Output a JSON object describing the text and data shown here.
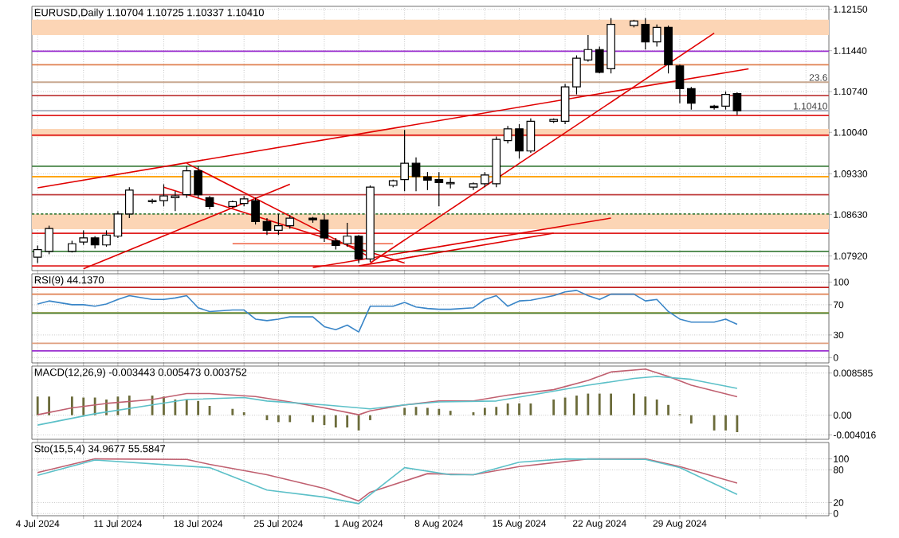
{
  "chart_data": [
    {
      "type": "candlestick",
      "title": "EURUSD,Daily 1.10704 1.10725 1.10337 1.10410",
      "color": "#000000",
      "grid": true,
      "tick_labels": "y",
      "x": [
        "2024-07-04",
        "2024-07-05",
        "2024-07-07",
        "2024-07-08",
        "2024-07-09",
        "2024-07-10",
        "2024-07-11",
        "2024-07-12",
        "2024-07-14",
        "2024-07-15",
        "2024-07-16",
        "2024-07-17",
        "2024-07-18",
        "2024-07-19",
        "2024-07-21",
        "2024-07-22",
        "2024-07-23",
        "2024-07-24",
        "2024-07-25",
        "2024-07-26",
        "2024-07-28",
        "2024-07-29",
        "2024-07-30",
        "2024-07-31",
        "2024-08-01",
        "2024-08-02",
        "2024-08-04",
        "2024-08-05",
        "2024-08-06",
        "2024-08-07",
        "2024-08-08",
        "2024-08-09",
        "2024-08-11",
        "2024-08-12",
        "2024-08-13",
        "2024-08-14",
        "2024-08-15",
        "2024-08-16",
        "2024-08-18",
        "2024-08-19",
        "2024-08-20",
        "2024-08-21",
        "2024-08-22",
        "2024-08-23",
        "2024-08-25",
        "2024-08-26",
        "2024-08-27",
        "2024-08-28",
        "2024-08-29",
        "2024-08-30",
        "2024-09-01",
        "2024-09-02",
        "2024-09-03"
      ],
      "ohlc": [
        [
          1.079,
          1.081,
          1.078,
          1.0803
        ],
        [
          1.08,
          1.0844,
          1.0795,
          1.0839
        ],
        [
          1.08,
          1.0818,
          1.0798,
          1.0813
        ],
        [
          1.0816,
          1.0836,
          1.0811,
          1.0823
        ],
        [
          1.0823,
          1.0826,
          1.0805,
          1.0811
        ],
        [
          1.0811,
          1.0836,
          1.0808,
          1.0828
        ],
        [
          1.0826,
          1.0869,
          1.0823,
          1.0864
        ],
        [
          1.0864,
          1.091,
          1.0857,
          1.0905
        ],
        [
          1.0885,
          1.089,
          1.0882,
          1.0887
        ],
        [
          1.0887,
          1.0915,
          1.0877,
          1.0895
        ],
        [
          1.0892,
          1.0903,
          1.0869,
          1.0895
        ],
        [
          1.0897,
          1.0946,
          1.0892,
          1.0938
        ],
        [
          1.0938,
          1.0946,
          1.0892,
          1.0897
        ],
        [
          1.0892,
          1.0895,
          1.0872,
          1.0877
        ],
        [
          1.0877,
          1.0887,
          1.0875,
          1.0885
        ],
        [
          1.0882,
          1.0895,
          1.0877,
          1.089
        ],
        [
          1.0887,
          1.0892,
          1.0846,
          1.0851
        ],
        [
          1.0851,
          1.0857,
          1.0828,
          1.0836
        ],
        [
          1.0836,
          1.0864,
          1.0828,
          1.0844
        ],
        [
          1.0844,
          1.0862,
          1.0839,
          1.0857
        ],
        [
          1.0857,
          1.0859,
          1.0849,
          1.0854
        ],
        [
          1.0854,
          1.0864,
          1.0816,
          1.0823
        ],
        [
          1.0818,
          1.0823,
          1.0803,
          1.081
        ],
        [
          1.0813,
          1.0849,
          1.0808,
          1.0826
        ],
        [
          1.0826,
          1.0828,
          1.078,
          1.0787
        ],
        [
          1.0787,
          1.0913,
          1.0782,
          1.091
        ],
        [
          1.0913,
          1.0923,
          1.091,
          1.0921
        ],
        [
          1.0923,
          1.1008,
          1.0903,
          1.0951
        ],
        [
          1.0951,
          1.0961,
          1.0903,
          1.0928
        ],
        [
          1.0928,
          1.0936,
          1.0905,
          1.0922
        ],
        [
          1.0923,
          1.0936,
          1.0877,
          1.0918
        ],
        [
          1.0916,
          1.0926,
          1.0908,
          1.0918
        ],
        [
          1.091,
          1.0918,
          1.0905,
          1.0916
        ],
        [
          1.0916,
          1.0936,
          1.091,
          1.0931
        ],
        [
          1.0916,
          1.0997,
          1.091,
          1.0992
        ],
        [
          1.099,
          1.1015,
          1.0985,
          1.101
        ],
        [
          1.101,
          1.1018,
          1.0959,
          1.0972
        ],
        [
          1.0972,
          1.1028,
          1.0969,
          1.1023
        ],
        [
          1.1023,
          1.1028,
          1.102,
          1.1026
        ],
        [
          1.1023,
          1.1087,
          1.1018,
          1.1082
        ],
        [
          1.1082,
          1.1136,
          1.1069,
          1.1131
        ],
        [
          1.1128,
          1.1171,
          1.1125,
          1.1146
        ],
        [
          1.1146,
          1.1151,
          1.1105,
          1.1107
        ],
        [
          1.1113,
          1.12,
          1.1105,
          1.1189
        ],
        [
          1.1187,
          1.1197,
          1.1184,
          1.1195
        ],
        [
          1.1189,
          1.12,
          1.1146,
          1.1159
        ],
        [
          1.1159,
          1.1189,
          1.1151,
          1.1184
        ],
        [
          1.1184,
          1.1187,
          1.1105,
          1.112
        ],
        [
          1.1118,
          1.112,
          1.1054,
          1.1079
        ],
        [
          1.1079,
          1.1082,
          1.1043,
          1.1054
        ],
        [
          1.1049,
          1.1051,
          1.1043,
          1.1046
        ],
        [
          1.1049,
          1.1074,
          1.1043,
          1.1069
        ],
        [
          1.10704,
          1.10725,
          1.10337,
          1.1041
        ]
      ],
      "series": [
        {
          "type": "line",
          "color": "#e00000",
          "x": [
            "2024-07-04",
            "2024-09-04"
          ],
          "values": [
            1.0909,
            1.1113
          ]
        },
        {
          "type": "line",
          "color": "#e00000",
          "x": [
            "2024-08-02",
            "2024-09-01"
          ],
          "values": [
            1.078,
            1.1174
          ]
        },
        {
          "type": "line",
          "color": "#e00000",
          "x": [
            "2024-07-15",
            "2024-08-05"
          ],
          "values": [
            1.091,
            1.078
          ]
        },
        {
          "type": "line",
          "color": "#e00000",
          "x": [
            "2024-07-17",
            "2024-08-02"
          ],
          "values": [
            1.0951,
            1.079
          ]
        },
        {
          "type": "line",
          "color": "#e00000",
          "x": [
            "2024-07-08",
            "2024-07-26"
          ],
          "values": [
            1.077,
            1.0915
          ]
        },
        {
          "type": "line",
          "color": "#e00000",
          "x": [
            "2024-07-28",
            "2024-08-23"
          ],
          "values": [
            1.0772,
            1.0857
          ]
        },
        {
          "type": "line",
          "color": "#e00000",
          "x": [
            "2024-08-01",
            "2024-08-18"
          ],
          "values": [
            1.0775,
            1.0831
          ]
        },
        {
          "type": "line",
          "color": "#f06040",
          "x": [
            "2024-07-21",
            "2024-08-04"
          ],
          "values": [
            1.0813,
            1.0813
          ]
        }
      ],
      "ref_lines": [
        {
          "axis": "y",
          "value": 1.1143,
          "color": "#9b30d0"
        },
        {
          "axis": "y",
          "value": 1.112,
          "color": "#e08050"
        },
        {
          "axis": "y",
          "value": 1.109,
          "color": "#c8a890"
        },
        {
          "axis": "y",
          "value": 1.1067,
          "color": "#c04040"
        },
        {
          "axis": "y",
          "value": 1.1041,
          "label": "1.10410",
          "color": "#a0a8b8"
        },
        {
          "axis": "y",
          "value": 1.1033,
          "color": "#e02020"
        },
        {
          "axis": "y",
          "value": 1.0999,
          "color": "#e02020"
        },
        {
          "axis": "y",
          "value": 1.0946,
          "color": "#408040"
        },
        {
          "axis": "y",
          "value": 1.0928,
          "color": "#ffa500"
        },
        {
          "axis": "y",
          "value": 1.0897,
          "color": "#c04040"
        },
        {
          "axis": "y",
          "value": 1.0864,
          "color": "#408040",
          "line_style": "dotted"
        },
        {
          "axis": "y",
          "value": 1.0831,
          "color": "#e02020"
        },
        {
          "axis": "y",
          "value": 1.08,
          "color": "#408040"
        },
        {
          "axis": "y",
          "value": 1.0775,
          "color": "#e02020"
        }
      ],
      "bands": [
        {
          "axis": "y",
          "from": 1.0997,
          "to": 1.101,
          "color": "#fcd5b5"
        },
        {
          "axis": "y",
          "from": 1.0838,
          "to": 1.0864,
          "color": "#fcd5b5"
        },
        {
          "axis": "y",
          "from": 1.1171,
          "to": 1.1197,
          "color": "#fcd5b5"
        }
      ],
      "annotations": [
        {
          "text": "23.6",
          "x": "2024-09-11",
          "y": 1.109
        }
      ],
      "xlim": [
        "2024-07-03T12:00",
        "2024-09-11"
      ],
      "xticks": [
        {
          "value": "2024-07-04",
          "label": null
        },
        {
          "value": "2024-07-08",
          "label": null
        },
        {
          "value": "2024-07-11",
          "label": null
        },
        {
          "value": "2024-07-15",
          "label": null
        },
        {
          "value": "2024-07-18",
          "label": null
        },
        {
          "value": "2024-07-22",
          "label": null
        },
        {
          "value": "2024-07-25",
          "label": null
        },
        {
          "value": "2024-07-29",
          "label": null
        },
        {
          "value": "2024-08-01",
          "label": null
        },
        {
          "value": "2024-08-05",
          "label": null
        },
        {
          "value": "2024-08-08",
          "label": null
        },
        {
          "value": "2024-08-12",
          "label": null
        },
        {
          "value": "2024-08-15",
          "label": null
        },
        {
          "value": "2024-08-19",
          "label": null
        },
        {
          "value": "2024-08-22",
          "label": null
        },
        {
          "value": "2024-08-26",
          "label": null
        },
        {
          "value": "2024-08-29",
          "label": null
        },
        {
          "value": "2024-09-02",
          "label": null
        },
        {
          "value": "2024-09-05",
          "label": null
        },
        {
          "value": "2024-09-09",
          "label": null
        }
      ],
      "ylim": [
        1.0767,
        1.122
      ],
      "yticks": [
        {
          "value": 1.1215,
          "label": "1.12150"
        },
        {
          "value": 1.1144,
          "label": "1.11440"
        },
        {
          "value": 1.1074,
          "label": "1.10740"
        },
        {
          "value": 1.1004,
          "label": "1.10040"
        },
        {
          "value": 1.0933,
          "label": "1.09330"
        },
        {
          "value": 1.0863,
          "label": "1.08630"
        },
        {
          "value": 1.0792,
          "label": "1.07920"
        }
      ]
    },
    {
      "type": "line",
      "title": "RSI(9) 44.1370",
      "color": "#3a86c8",
      "grid": true,
      "tick_labels": "y",
      "x": [
        "2024-07-04",
        "2024-07-05",
        "2024-07-07",
        "2024-07-08",
        "2024-07-09",
        "2024-07-10",
        "2024-07-11",
        "2024-07-12",
        "2024-07-14",
        "2024-07-15",
        "2024-07-16",
        "2024-07-17",
        "2024-07-18",
        "2024-07-19",
        "2024-07-21",
        "2024-07-22",
        "2024-07-23",
        "2024-07-24",
        "2024-07-25",
        "2024-07-26",
        "2024-07-28",
        "2024-07-29",
        "2024-07-30",
        "2024-07-31",
        "2024-08-01",
        "2024-08-02",
        "2024-08-04",
        "2024-08-05",
        "2024-08-06",
        "2024-08-07",
        "2024-08-08",
        "2024-08-09",
        "2024-08-11",
        "2024-08-12",
        "2024-08-13",
        "2024-08-14",
        "2024-08-15",
        "2024-08-16",
        "2024-08-18",
        "2024-08-19",
        "2024-08-20",
        "2024-08-21",
        "2024-08-22",
        "2024-08-23",
        "2024-08-25",
        "2024-08-26",
        "2024-08-27",
        "2024-08-28",
        "2024-08-29",
        "2024-08-30",
        "2024-09-01",
        "2024-09-02",
        "2024-09-03"
      ],
      "values": [
        71,
        75,
        70,
        70,
        68,
        71,
        77,
        82,
        77,
        77,
        79,
        82,
        66,
        61,
        63,
        63,
        51,
        49,
        51,
        54,
        54,
        41,
        37,
        43,
        34,
        68,
        68,
        73,
        67,
        65,
        64,
        64,
        66,
        77,
        82,
        68,
        75,
        76,
        82,
        87,
        89,
        82,
        77,
        84,
        84,
        75,
        77,
        61,
        51,
        47,
        47,
        51,
        44.137
      ],
      "ref_lines": [
        {
          "axis": "y",
          "value": 93,
          "color": "#c02020"
        },
        {
          "axis": "y",
          "value": 84,
          "color": "#e08050"
        },
        {
          "axis": "y",
          "value": 59,
          "color": "#ffa500"
        },
        {
          "axis": "y",
          "value": 59,
          "color": "#408040"
        },
        {
          "axis": "y",
          "value": 19,
          "color": "#e0a080"
        },
        {
          "axis": "y",
          "value": 9,
          "color": "#9b30d0"
        }
      ],
      "xlim": [
        "2024-07-03T12:00",
        "2024-09-11"
      ],
      "xticks": [
        {
          "value": "2024-07-04",
          "label": null
        },
        {
          "value": "2024-07-08",
          "label": null
        },
        {
          "value": "2024-07-11",
          "label": null
        },
        {
          "value": "2024-07-15",
          "label": null
        },
        {
          "value": "2024-07-18",
          "label": null
        },
        {
          "value": "2024-07-22",
          "label": null
        },
        {
          "value": "2024-07-25",
          "label": null
        },
        {
          "value": "2024-07-29",
          "label": null
        },
        {
          "value": "2024-08-01",
          "label": null
        },
        {
          "value": "2024-08-05",
          "label": null
        },
        {
          "value": "2024-08-08",
          "label": null
        },
        {
          "value": "2024-08-12",
          "label": null
        },
        {
          "value": "2024-08-15",
          "label": null
        },
        {
          "value": "2024-08-19",
          "label": null
        },
        {
          "value": "2024-08-22",
          "label": null
        },
        {
          "value": "2024-08-26",
          "label": null
        },
        {
          "value": "2024-08-29",
          "label": null
        },
        {
          "value": "2024-09-02",
          "label": null
        },
        {
          "value": "2024-09-05",
          "label": null
        },
        {
          "value": "2024-09-09",
          "label": null
        }
      ],
      "ylim": [
        -7,
        111
      ],
      "yticks": [
        100,
        70,
        30,
        0
      ]
    },
    {
      "type": "bar",
      "title": "MACD(12,26,9) -0.003443 0.005473 0.003752",
      "grid": true,
      "tick_labels": "y",
      "x": [
        "2024-07-04",
        "2024-07-05",
        "2024-07-07",
        "2024-07-08",
        "2024-07-09",
        "2024-07-10",
        "2024-07-11",
        "2024-07-12",
        "2024-07-14",
        "2024-07-15",
        "2024-07-16",
        "2024-07-17",
        "2024-07-18",
        "2024-07-19",
        "2024-07-21",
        "2024-07-22",
        "2024-07-23",
        "2024-07-24",
        "2024-07-25",
        "2024-07-26",
        "2024-07-28",
        "2024-07-29",
        "2024-07-30",
        "2024-07-31",
        "2024-08-01",
        "2024-08-02",
        "2024-08-04",
        "2024-08-05",
        "2024-08-06",
        "2024-08-07",
        "2024-08-08",
        "2024-08-09",
        "2024-08-11",
        "2024-08-12",
        "2024-08-13",
        "2024-08-14",
        "2024-08-15",
        "2024-08-16",
        "2024-08-18",
        "2024-08-19",
        "2024-08-20",
        "2024-08-21",
        "2024-08-22",
        "2024-08-23",
        "2024-08-25",
        "2024-08-26",
        "2024-08-27",
        "2024-08-28",
        "2024-08-29",
        "2024-08-30",
        "2024-09-01",
        "2024-09-02",
        "2024-09-03"
      ],
      "series": [
        {
          "color": "#6b6b3a",
          "values": [
            0.0038,
            0.0038,
            0.0038,
            0.0036,
            0.0036,
            0.0032,
            0.0038,
            0.004,
            0.004,
            0.0038,
            0.0032,
            0.0032,
            0.0029,
            0.0019,
            0.0013,
            0.0006,
            null,
            -0.001,
            -0.0014,
            -0.0014,
            -0.0014,
            -0.002,
            -0.0025,
            -0.0025,
            -0.0031,
            -0.001,
            null,
            0.0015,
            0.0017,
            0.0015,
            0.0013,
            0.0009,
            0.0006,
            0.0015,
            0.0017,
            0.0024,
            0.0024,
            0.0024,
            0.0032,
            0.0036,
            0.004,
            0.0044,
            0.0044,
            0.0044,
            0.0044,
            0.0038,
            0.0032,
            0.0021,
            0.0002,
            -0.0017,
            -0.0031,
            -0.0031,
            -0.003443
          ]
        },
        {
          "type": "line",
          "color": "#c06070",
          "x": [
            "2024-07-04",
            "2024-07-07",
            "2024-07-10",
            "2024-07-14",
            "2024-07-17",
            "2024-07-19",
            "2024-07-23",
            "2024-07-26",
            "2024-07-29",
            "2024-08-01",
            "2024-08-02",
            "2024-08-05",
            "2024-08-08",
            "2024-08-11",
            "2024-08-14",
            "2024-08-18",
            "2024-08-21",
            "2024-08-23",
            "2024-08-26",
            "2024-08-28",
            "2024-08-30",
            "2024-09-03"
          ],
          "values": [
            0.0001,
            0.0015,
            0.0024,
            0.0032,
            0.0044,
            0.0044,
            0.0038,
            0.0027,
            0.0015,
            0.0001,
            0.0009,
            0.0021,
            0.0029,
            0.0029,
            0.0041,
            0.0052,
            0.0071,
            0.0088,
            0.0094,
            0.0079,
            0.0061,
            0.003752
          ]
        },
        {
          "type": "line",
          "color": "#5cc0c8",
          "x": [
            "2024-07-04",
            "2024-07-09",
            "2024-07-14",
            "2024-07-17",
            "2024-07-22",
            "2024-07-24",
            "2024-07-29",
            "2024-08-01",
            "2024-08-02",
            "2024-08-05",
            "2024-08-08",
            "2024-08-13",
            "2024-08-16",
            "2024-08-21",
            "2024-08-25",
            "2024-08-27",
            "2024-08-30",
            "2024-09-03"
          ],
          "values": [
            -0.002,
            0.0003,
            0.0021,
            0.0032,
            0.0036,
            0.0029,
            0.0021,
            0.0015,
            0.0013,
            0.0021,
            0.0027,
            0.0029,
            0.0041,
            0.0061,
            0.0075,
            0.0079,
            0.0073,
            0.005473
          ]
        }
      ],
      "xlim": [
        "2024-07-03T12:00",
        "2024-09-11"
      ],
      "xticks": [
        {
          "value": "2024-07-04",
          "label": null
        },
        {
          "value": "2024-07-08",
          "label": null
        },
        {
          "value": "2024-07-11",
          "label": null
        },
        {
          "value": "2024-07-15",
          "label": null
        },
        {
          "value": "2024-07-18",
          "label": null
        },
        {
          "value": "2024-07-22",
          "label": null
        },
        {
          "value": "2024-07-25",
          "label": null
        },
        {
          "value": "2024-07-29",
          "label": null
        },
        {
          "value": "2024-08-01",
          "label": null
        },
        {
          "value": "2024-08-05",
          "label": null
        },
        {
          "value": "2024-08-08",
          "label": null
        },
        {
          "value": "2024-08-12",
          "label": null
        },
        {
          "value": "2024-08-15",
          "label": null
        },
        {
          "value": "2024-08-19",
          "label": null
        },
        {
          "value": "2024-08-22",
          "label": null
        },
        {
          "value": "2024-08-26",
          "label": null
        },
        {
          "value": "2024-08-29",
          "label": null
        },
        {
          "value": "2024-09-02",
          "label": null
        },
        {
          "value": "2024-09-05",
          "label": null
        },
        {
          "value": "2024-09-09",
          "label": null
        }
      ],
      "ylim": [
        -0.0049,
        0.01
      ],
      "yticks": [
        0.008585,
        {
          "value": 0,
          "label": "0.00"
        },
        -0.004016
      ]
    },
    {
      "type": "line",
      "title": "Sto(15,5,4) 34.9677 55.5847",
      "grid": true,
      "series": [
        {
          "color": "#c06070",
          "x": [
            "2024-07-04",
            "2024-07-09",
            "2024-07-17",
            "2024-07-19",
            "2024-07-24",
            "2024-07-29",
            "2024-08-01",
            "2024-08-02",
            "2024-08-07",
            "2024-08-11",
            "2024-08-15",
            "2024-08-21",
            "2024-08-25",
            "2024-08-26",
            "2024-08-29",
            "2024-09-03"
          ],
          "values": [
            75,
            100,
            99,
            90,
            71,
            46,
            23,
            39,
            73,
            71,
            86,
            100,
            100,
            100,
            86,
            55.5847
          ]
        },
        {
          "color": "#5cc0c8",
          "x": [
            "2024-07-04",
            "2024-07-09",
            "2024-07-19",
            "2024-07-24",
            "2024-07-29",
            "2024-08-01",
            "2024-08-05",
            "2024-08-09",
            "2024-08-11",
            "2024-08-15",
            "2024-08-19",
            "2024-08-26",
            "2024-08-29",
            "2024-09-03"
          ],
          "values": [
            70,
            98,
            84,
            43,
            30,
            18,
            84,
            71,
            71,
            94,
            100,
            99,
            84,
            34.9677
          ]
        }
      ],
      "xlim": [
        "2024-07-03T12:00",
        "2024-09-11"
      ],
      "xticks": [
        {
          "value": "2024-07-04",
          "label": "4 Jul 2024"
        },
        {
          "value": "2024-07-08",
          "label": null
        },
        {
          "value": "2024-07-11",
          "label": "11 Jul 2024"
        },
        {
          "value": "2024-07-15",
          "label": null
        },
        {
          "value": "2024-07-18",
          "label": "18 Jul 2024"
        },
        {
          "value": "2024-07-22",
          "label": null
        },
        {
          "value": "2024-07-25",
          "label": "25 Jul 2024"
        },
        {
          "value": "2024-07-29",
          "label": null
        },
        {
          "value": "2024-08-01",
          "label": "1 Aug 2024"
        },
        {
          "value": "2024-08-05",
          "label": null
        },
        {
          "value": "2024-08-08",
          "label": "8 Aug 2024"
        },
        {
          "value": "2024-08-12",
          "label": null
        },
        {
          "value": "2024-08-15",
          "label": "15 Aug 2024"
        },
        {
          "value": "2024-08-19",
          "label": null
        },
        {
          "value": "2024-08-22",
          "label": "22 Aug 2024"
        },
        {
          "value": "2024-08-26",
          "label": null
        },
        {
          "value": "2024-08-29",
          "label": "29 Aug 2024"
        },
        {
          "value": "2024-09-02",
          "label": null
        },
        {
          "value": "2024-09-05",
          "label": null
        },
        {
          "value": "2024-09-09",
          "label": null
        }
      ],
      "ylim": [
        -4,
        130
      ],
      "yticks": [
        100,
        80,
        20,
        0
      ]
    }
  ]
}
